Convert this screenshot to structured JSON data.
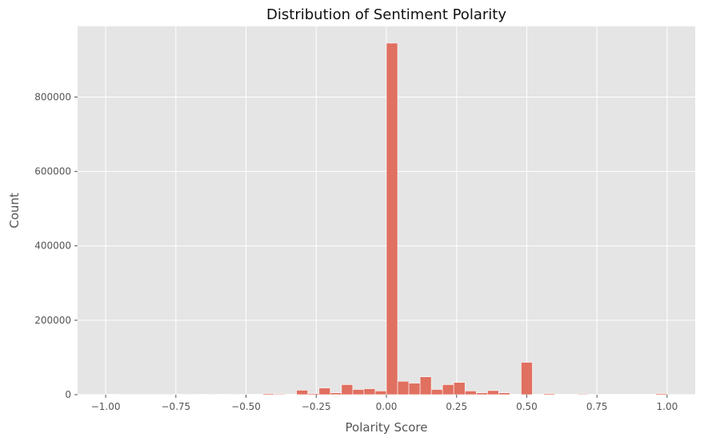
{
  "chart_data": {
    "type": "bar",
    "title": "Distribution of Sentiment Polarity",
    "xlabel": "Polarity Score",
    "ylabel": "Count",
    "xlim": [
      -1.1,
      1.1
    ],
    "ylim": [
      0,
      990000
    ],
    "xticks": [
      -1.0,
      -0.75,
      -0.5,
      -0.25,
      0.0,
      0.25,
      0.5,
      0.75,
      1.0
    ],
    "xtick_labels": [
      "−1.00",
      "−0.75",
      "−0.50",
      "−0.25",
      "0.00",
      "0.25",
      "0.50",
      "0.75",
      "1.00"
    ],
    "yticks": [
      0,
      200000,
      400000,
      600000,
      800000
    ],
    "ytick_labels": [
      "0",
      "200000",
      "400000",
      "600000",
      "800000"
    ],
    "bin_width": 0.04,
    "grid": true,
    "colors": {
      "bar": "#E07060",
      "bar_edge": "#ffffff",
      "plot_bg": "#E5E5E5",
      "grid": "#ffffff"
    },
    "bins": [
      {
        "x": -1.0,
        "count": 500
      },
      {
        "x": -0.96,
        "count": 0
      },
      {
        "x": -0.92,
        "count": 0
      },
      {
        "x": -0.88,
        "count": 0
      },
      {
        "x": -0.84,
        "count": 0
      },
      {
        "x": -0.8,
        "count": 0
      },
      {
        "x": -0.76,
        "count": 300
      },
      {
        "x": -0.72,
        "count": 0
      },
      {
        "x": -0.68,
        "count": 300
      },
      {
        "x": -0.64,
        "count": 0
      },
      {
        "x": -0.6,
        "count": 300
      },
      {
        "x": -0.56,
        "count": 0
      },
      {
        "x": -0.52,
        "count": 500
      },
      {
        "x": -0.48,
        "count": 300
      },
      {
        "x": -0.44,
        "count": 3000
      },
      {
        "x": -0.4,
        "count": 2000
      },
      {
        "x": -0.36,
        "count": 1000
      },
      {
        "x": -0.32,
        "count": 12000
      },
      {
        "x": -0.28,
        "count": 3000
      },
      {
        "x": -0.24,
        "count": 18000
      },
      {
        "x": -0.2,
        "count": 5000
      },
      {
        "x": -0.16,
        "count": 27000
      },
      {
        "x": -0.12,
        "count": 14000
      },
      {
        "x": -0.08,
        "count": 16000
      },
      {
        "x": -0.04,
        "count": 10000
      },
      {
        "x": 0.0,
        "count": 945000
      },
      {
        "x": 0.04,
        "count": 36000
      },
      {
        "x": 0.08,
        "count": 31000
      },
      {
        "x": 0.12,
        "count": 48000
      },
      {
        "x": 0.16,
        "count": 14000
      },
      {
        "x": 0.2,
        "count": 27000
      },
      {
        "x": 0.24,
        "count": 33000
      },
      {
        "x": 0.28,
        "count": 10000
      },
      {
        "x": 0.32,
        "count": 5000
      },
      {
        "x": 0.36,
        "count": 11000
      },
      {
        "x": 0.4,
        "count": 5000
      },
      {
        "x": 0.44,
        "count": 1000
      },
      {
        "x": 0.48,
        "count": 87000
      },
      {
        "x": 0.52,
        "count": 1000
      },
      {
        "x": 0.56,
        "count": 3000
      },
      {
        "x": 0.6,
        "count": 1000
      },
      {
        "x": 0.64,
        "count": 500
      },
      {
        "x": 0.68,
        "count": 2000
      },
      {
        "x": 0.72,
        "count": 500
      },
      {
        "x": 0.76,
        "count": 800
      },
      {
        "x": 0.8,
        "count": 500
      },
      {
        "x": 0.84,
        "count": 300
      },
      {
        "x": 0.88,
        "count": 300
      },
      {
        "x": 0.92,
        "count": 300
      },
      {
        "x": 0.96,
        "count": 3000
      }
    ]
  }
}
